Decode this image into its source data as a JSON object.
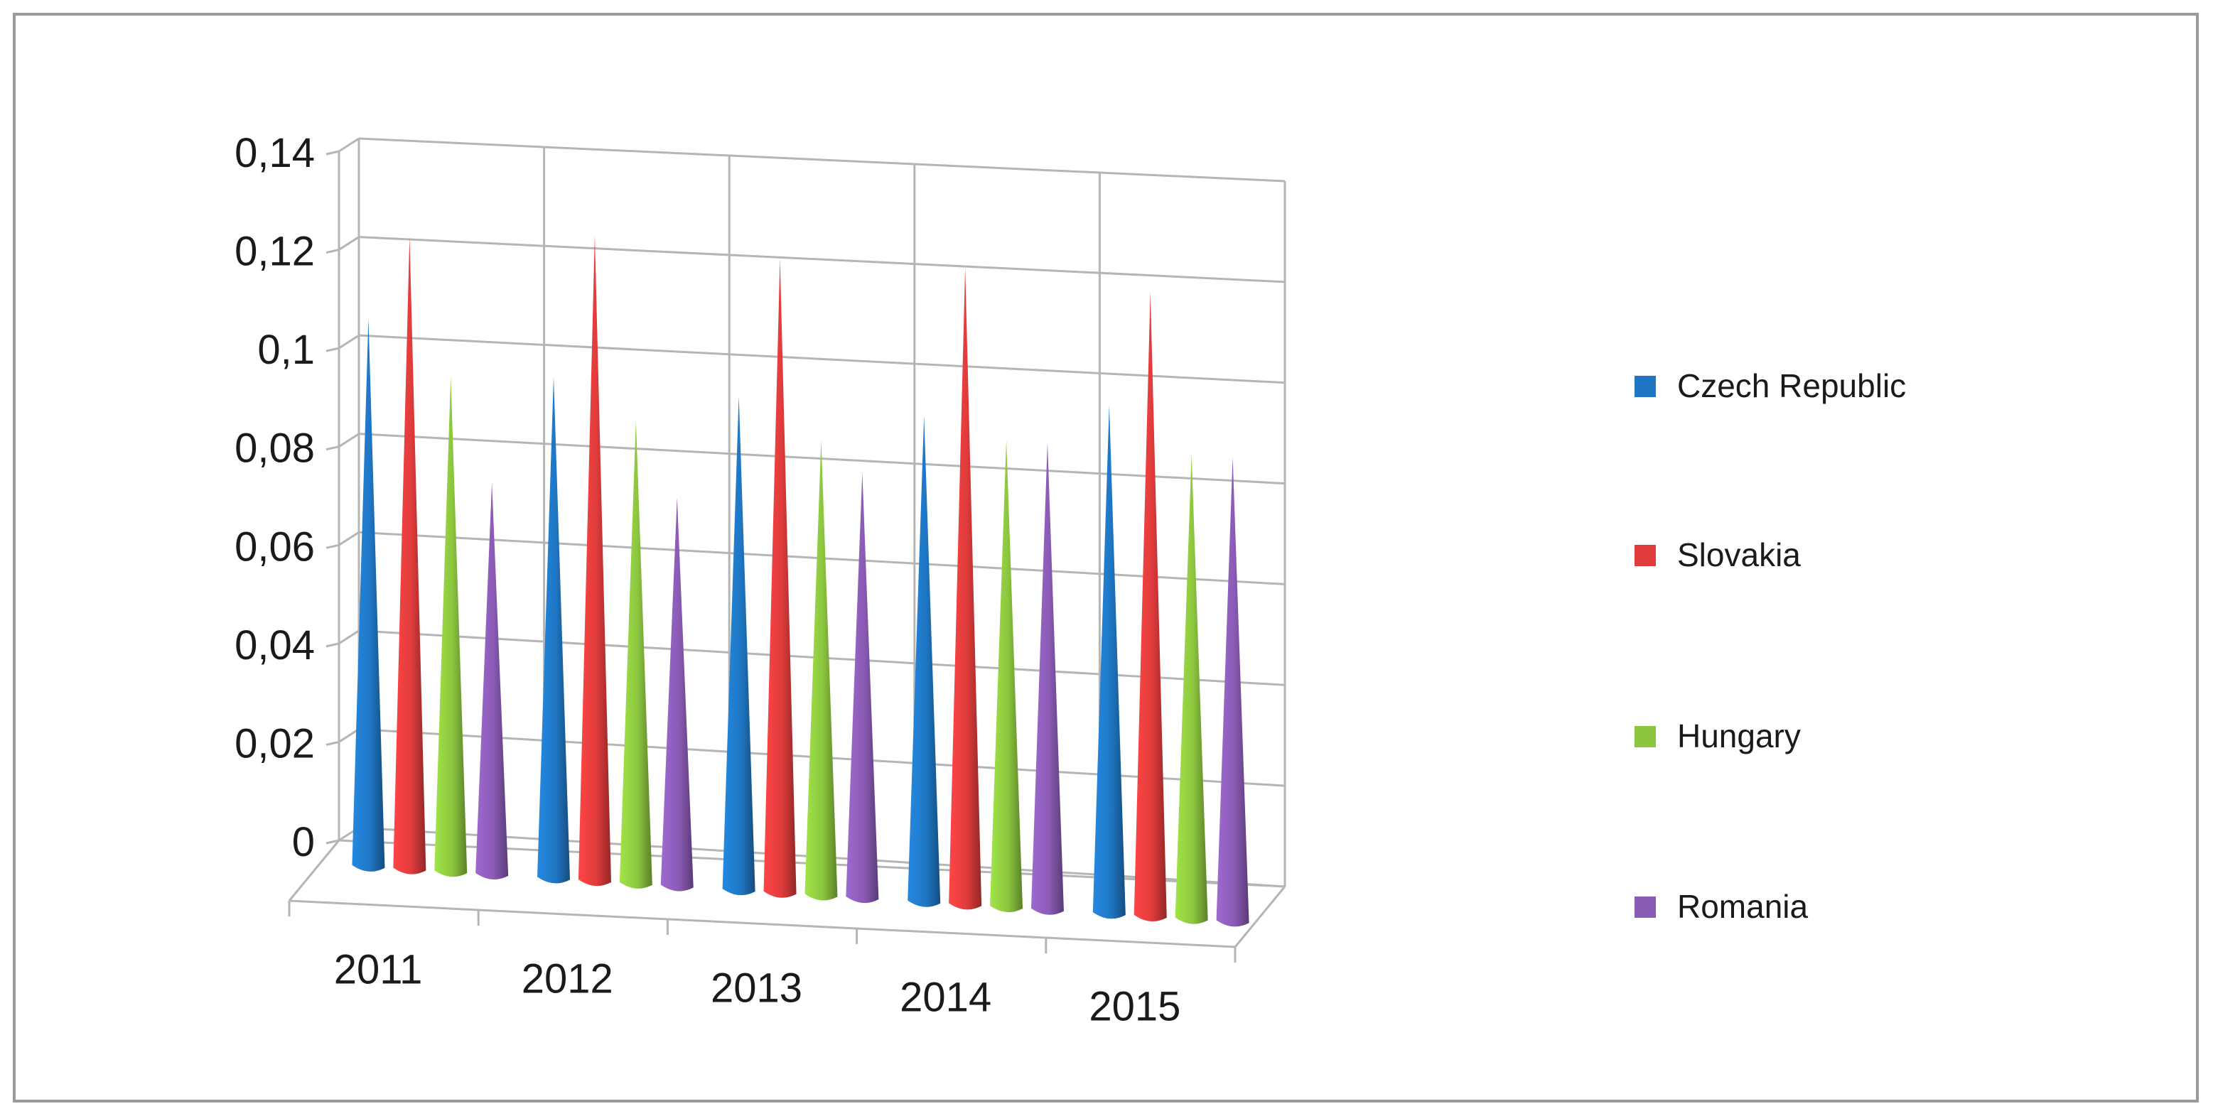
{
  "chart_data": {
    "type": "bar",
    "style": "3d-cone",
    "categories": [
      "2011",
      "2012",
      "2013",
      "2014",
      "2015"
    ],
    "y_tick_labels": [
      "0",
      "0,02",
      "0,04",
      "0,06",
      "0,08",
      "0,1",
      "0,12",
      "0,14"
    ],
    "ylim": [
      0,
      0.14
    ],
    "grid": true,
    "legend_position": "right",
    "series": [
      {
        "name": "Czech Republic",
        "color": "#1f77c4",
        "values": [
          0.111,
          0.101,
          0.099,
          0.097,
          0.101
        ]
      },
      {
        "name": "Slovakia",
        "color": "#e03c3c",
        "values": [
          0.128,
          0.13,
          0.127,
          0.127,
          0.124
        ]
      },
      {
        "name": "Hungary",
        "color": "#8cc63f",
        "values": [
          0.1,
          0.093,
          0.091,
          0.093,
          0.092
        ]
      },
      {
        "name": "Romania",
        "color": "#8a5bb5",
        "values": [
          0.079,
          0.078,
          0.085,
          0.093,
          0.092
        ]
      }
    ]
  }
}
